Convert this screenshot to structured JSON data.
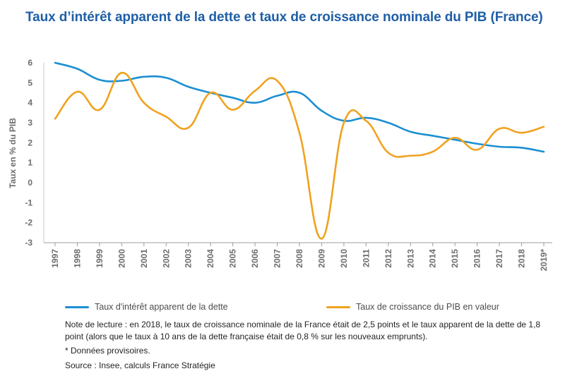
{
  "title": "Taux d’intérêt apparent de la dette et taux de croissance nominale du PIB (France)",
  "chart_data": {
    "type": "line",
    "title": "Taux d’intérêt apparent de la dette et taux de croissance nominale du PIB (France)",
    "xlabel": "",
    "ylabel": "Taux en % du PIB",
    "ylim": [
      -3,
      6
    ],
    "yticks": [
      "6",
      "5",
      "4",
      "3",
      "2",
      "1",
      "0",
      "-1",
      "-2",
      "-3"
    ],
    "categories": [
      "1997",
      "1998",
      "1999",
      "2000",
      "2001",
      "2002",
      "2003",
      "2004",
      "2005",
      "2006",
      "2007",
      "2008",
      "2009",
      "2010",
      "2011",
      "2012",
      "2013",
      "2014",
      "2015",
      "2016",
      "2017",
      "2018",
      "2019*"
    ],
    "grid": false,
    "legend_position": "bottom",
    "series": [
      {
        "name": "Taux d'intérêt apparent de la dette",
        "color": "#1b8fd2",
        "values": [
          6.0,
          5.7,
          5.15,
          5.1,
          5.3,
          5.25,
          4.8,
          4.5,
          4.25,
          4.0,
          4.35,
          4.5,
          3.6,
          3.1,
          3.25,
          3.0,
          2.55,
          2.35,
          2.15,
          1.95,
          1.8,
          1.75,
          1.55
        ]
      },
      {
        "name": "Taux de croissance du PIB en valeur",
        "color": "#f0a21e",
        "values": [
          3.2,
          4.55,
          3.65,
          5.5,
          4.0,
          3.3,
          2.75,
          4.5,
          3.65,
          4.6,
          5.1,
          2.5,
          -2.8,
          3.0,
          3.1,
          1.5,
          1.35,
          1.55,
          2.25,
          1.65,
          2.7,
          2.5,
          2.8
        ]
      }
    ]
  },
  "legend": [
    {
      "label": "Taux d'intérêt apparent de la dette",
      "color": "#1b8fd2"
    },
    {
      "label": "Taux de croissance du PIB en valeur",
      "color": "#f0a21e"
    }
  ],
  "notes": {
    "reading": "Note de lecture : en 2018, le taux de croissance nominale de la France était de 2,5 points et le taux apparent de la dette de 1,8 point (alors que le taux à 10 ans de la dette française était de 0,8 % sur les nouveaux emprunts).",
    "provisional": "* Données provisoires.",
    "source": "Source : Insee, calculs France Stratégie"
  }
}
